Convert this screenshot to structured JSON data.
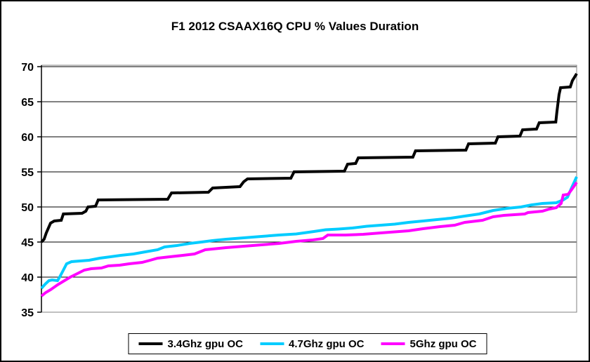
{
  "colors": {
    "background": "#FFFFFF",
    "frame_border": "#000000",
    "plot_border": "#808080",
    "gridline": "#000000",
    "axis": "#000000",
    "text": "#000000"
  },
  "chart_data": {
    "type": "line",
    "title": "F1 2012 CSAAX16Q CPU % Values Duration",
    "xlabel": "",
    "ylabel": "",
    "ylim": [
      35,
      70
    ],
    "yticks": [
      35,
      40,
      45,
      50,
      55,
      60,
      65,
      70
    ],
    "xticks_visible": false,
    "grid": "horizontal",
    "legend_position": "bottom-center",
    "x_units": "percent of duration (axis unlabeled)",
    "series": [
      {
        "name": "3.4Ghz gpu OC",
        "color": "#000000",
        "points": [
          [
            0,
            45.0
          ],
          [
            0.5,
            45.4
          ],
          [
            0.9,
            46.3
          ],
          [
            1.7,
            47.7
          ],
          [
            2.4,
            48.0
          ],
          [
            3.7,
            48.1
          ],
          [
            4.1,
            49.0
          ],
          [
            7.6,
            49.1
          ],
          [
            8.3,
            49.4
          ],
          [
            8.7,
            50.0
          ],
          [
            10.1,
            50.1
          ],
          [
            10.6,
            51.0
          ],
          [
            23.6,
            51.1
          ],
          [
            24.3,
            52.0
          ],
          [
            31.2,
            52.1
          ],
          [
            32.0,
            52.7
          ],
          [
            37.1,
            52.9
          ],
          [
            37.8,
            53.6
          ],
          [
            38.5,
            54.0
          ],
          [
            46.6,
            54.1
          ],
          [
            47.2,
            55.0
          ],
          [
            56.6,
            55.1
          ],
          [
            57.2,
            56.1
          ],
          [
            58.7,
            56.2
          ],
          [
            59.2,
            57.0
          ],
          [
            69.4,
            57.1
          ],
          [
            69.9,
            58.0
          ],
          [
            79.3,
            58.1
          ],
          [
            79.8,
            59.0
          ],
          [
            84.8,
            59.1
          ],
          [
            85.3,
            60.0
          ],
          [
            89.4,
            60.1
          ],
          [
            89.9,
            61.0
          ],
          [
            92.5,
            61.1
          ],
          [
            93.0,
            62.0
          ],
          [
            96.1,
            62.1
          ],
          [
            96.3,
            63.5
          ],
          [
            96.7,
            66.0
          ],
          [
            97.0,
            67.0
          ],
          [
            98.8,
            67.1
          ],
          [
            99.2,
            68.0
          ],
          [
            100,
            69.0
          ]
        ]
      },
      {
        "name": "4.7Ghz gpu OC",
        "color": "#00CCFF",
        "points": [
          [
            0,
            38.4
          ],
          [
            0.7,
            39.0
          ],
          [
            1.4,
            39.5
          ],
          [
            2.0,
            39.6
          ],
          [
            3.0,
            39.5
          ],
          [
            3.4,
            40.0
          ],
          [
            4.1,
            41.0
          ],
          [
            4.7,
            41.9
          ],
          [
            5.6,
            42.2
          ],
          [
            7.2,
            42.3
          ],
          [
            8.9,
            42.4
          ],
          [
            10.9,
            42.7
          ],
          [
            12.9,
            42.9
          ],
          [
            14.8,
            43.1
          ],
          [
            17.2,
            43.3
          ],
          [
            19.4,
            43.6
          ],
          [
            21.7,
            43.9
          ],
          [
            23.0,
            44.3
          ],
          [
            25.3,
            44.5
          ],
          [
            27.7,
            44.8
          ],
          [
            29.9,
            45.0
          ],
          [
            31.9,
            45.2
          ],
          [
            34.5,
            45.4
          ],
          [
            37.8,
            45.6
          ],
          [
            41.1,
            45.8
          ],
          [
            44.4,
            46.0
          ],
          [
            47.6,
            46.15
          ],
          [
            50.9,
            46.5
          ],
          [
            53.1,
            46.75
          ],
          [
            55.5,
            46.85
          ],
          [
            58.1,
            47.0
          ],
          [
            60.8,
            47.25
          ],
          [
            63.4,
            47.4
          ],
          [
            66.0,
            47.55
          ],
          [
            68.6,
            47.8
          ],
          [
            71.3,
            48.0
          ],
          [
            73.9,
            48.2
          ],
          [
            76.5,
            48.4
          ],
          [
            79.1,
            48.7
          ],
          [
            81.8,
            49.0
          ],
          [
            84.4,
            49.5
          ],
          [
            87.0,
            49.8
          ],
          [
            89.6,
            50.0
          ],
          [
            91.6,
            50.3
          ],
          [
            93.6,
            50.5
          ],
          [
            96.2,
            50.6
          ],
          [
            97.5,
            51.0
          ],
          [
            98.3,
            51.4
          ],
          [
            99.1,
            52.8
          ],
          [
            100,
            54.3
          ]
        ]
      },
      {
        "name": "5Ghz gpu OC",
        "color": "#FF00FF",
        "points": [
          [
            0,
            37.3
          ],
          [
            0.8,
            37.8
          ],
          [
            1.7,
            38.2
          ],
          [
            3.0,
            38.9
          ],
          [
            4.3,
            39.5
          ],
          [
            5.4,
            40.0
          ],
          [
            6.7,
            40.5
          ],
          [
            8.0,
            41.0
          ],
          [
            9.3,
            41.2
          ],
          [
            11.2,
            41.3
          ],
          [
            12.5,
            41.6
          ],
          [
            14.6,
            41.7
          ],
          [
            16.4,
            41.9
          ],
          [
            18.8,
            42.1
          ],
          [
            20.3,
            42.4
          ],
          [
            21.7,
            42.7
          ],
          [
            24.0,
            42.9
          ],
          [
            26.4,
            43.1
          ],
          [
            28.6,
            43.3
          ],
          [
            30.6,
            43.9
          ],
          [
            31.9,
            44.0
          ],
          [
            34.5,
            44.2
          ],
          [
            37.8,
            44.4
          ],
          [
            41.1,
            44.6
          ],
          [
            44.4,
            44.8
          ],
          [
            47.6,
            45.1
          ],
          [
            50.7,
            45.3
          ],
          [
            52.6,
            45.5
          ],
          [
            53.5,
            46.0
          ],
          [
            56.8,
            46.0
          ],
          [
            60.1,
            46.1
          ],
          [
            63.4,
            46.3
          ],
          [
            66.0,
            46.45
          ],
          [
            68.6,
            46.6
          ],
          [
            71.3,
            46.9
          ],
          [
            74.5,
            47.2
          ],
          [
            77.2,
            47.4
          ],
          [
            79.1,
            47.8
          ],
          [
            82.4,
            48.1
          ],
          [
            84.4,
            48.6
          ],
          [
            86.4,
            48.8
          ],
          [
            90.3,
            49.0
          ],
          [
            90.9,
            49.2
          ],
          [
            93.6,
            49.4
          ],
          [
            94.9,
            49.7
          ],
          [
            96.2,
            49.9
          ],
          [
            97.1,
            50.5
          ],
          [
            97.5,
            51.7
          ],
          [
            98.4,
            51.8
          ],
          [
            99.1,
            52.5
          ],
          [
            100,
            53.5
          ]
        ]
      }
    ]
  }
}
